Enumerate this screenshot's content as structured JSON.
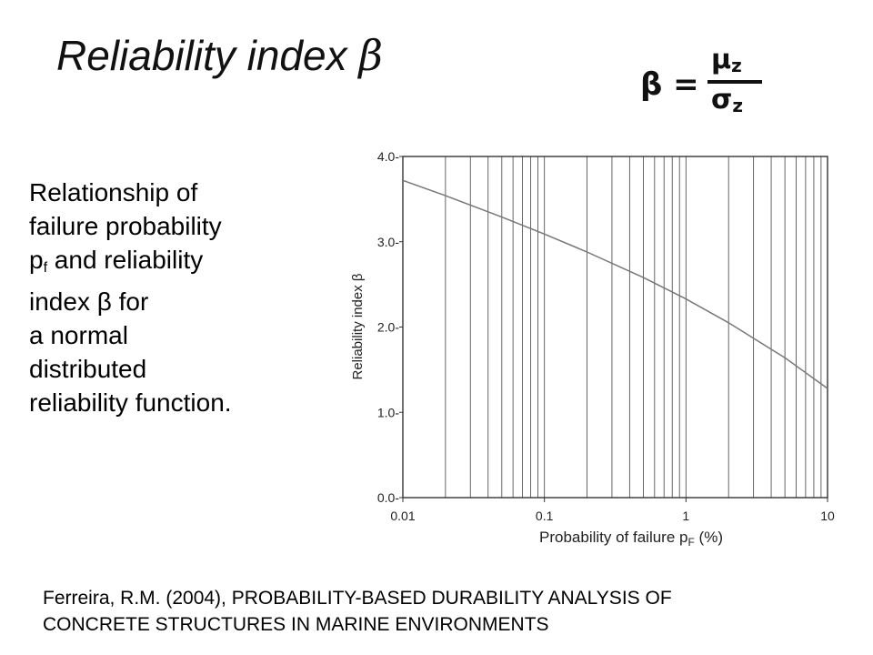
{
  "slide": {
    "title_text": "Reliability index",
    "title_symbol": "β",
    "formula": {
      "lhs": "β =",
      "numerator": "μ",
      "numerator_sub": "z",
      "denominator": "σ",
      "denominator_sub": "z"
    },
    "description": {
      "line1": "Relationship of",
      "line2": "failure probability",
      "line3_pre": "p",
      "line3_sub": "f",
      "line3_post": " and reliability",
      "line4": "index β for",
      "line5": "a normal",
      "line6": "distributed",
      "line7": "reliability function."
    },
    "citation": {
      "line1": "Ferreira, R.M. (2004), PROBABILITY-BASED DURABILITY ANALYSIS OF",
      "line2": "CONCRETE STRUCTURES IN MARINE ENVIRONMENTS"
    }
  },
  "chart_data": {
    "type": "line",
    "xscale": "log",
    "xlim": [
      0.01,
      10
    ],
    "ylim": [
      0.0,
      4.0
    ],
    "xlabel": "Probability of failure p",
    "xlabel_sub": "F",
    "xlabel_unit": " (%)",
    "ylabel": "Reliability index β",
    "xticks": [
      0.01,
      0.1,
      1,
      10
    ],
    "xtick_labels": [
      "0.01",
      "0.1",
      "1",
      "10"
    ],
    "yticks": [
      0.0,
      1.0,
      2.0,
      3.0,
      4.0
    ],
    "ytick_labels": [
      "0.0-",
      "1.0-",
      "2.0-",
      "3.0-",
      "4.0-"
    ],
    "grid": {
      "vertical_log": true,
      "horizontal": false
    },
    "series": [
      {
        "x": [
          0.01,
          0.02,
          0.05,
          0.1,
          0.2,
          0.5,
          1,
          2,
          5,
          10
        ],
        "values": [
          3.72,
          3.54,
          3.29,
          3.09,
          2.88,
          2.58,
          2.33,
          2.05,
          1.64,
          1.28
        ]
      }
    ],
    "line_color": "#777777",
    "grid_color": "#555555"
  }
}
